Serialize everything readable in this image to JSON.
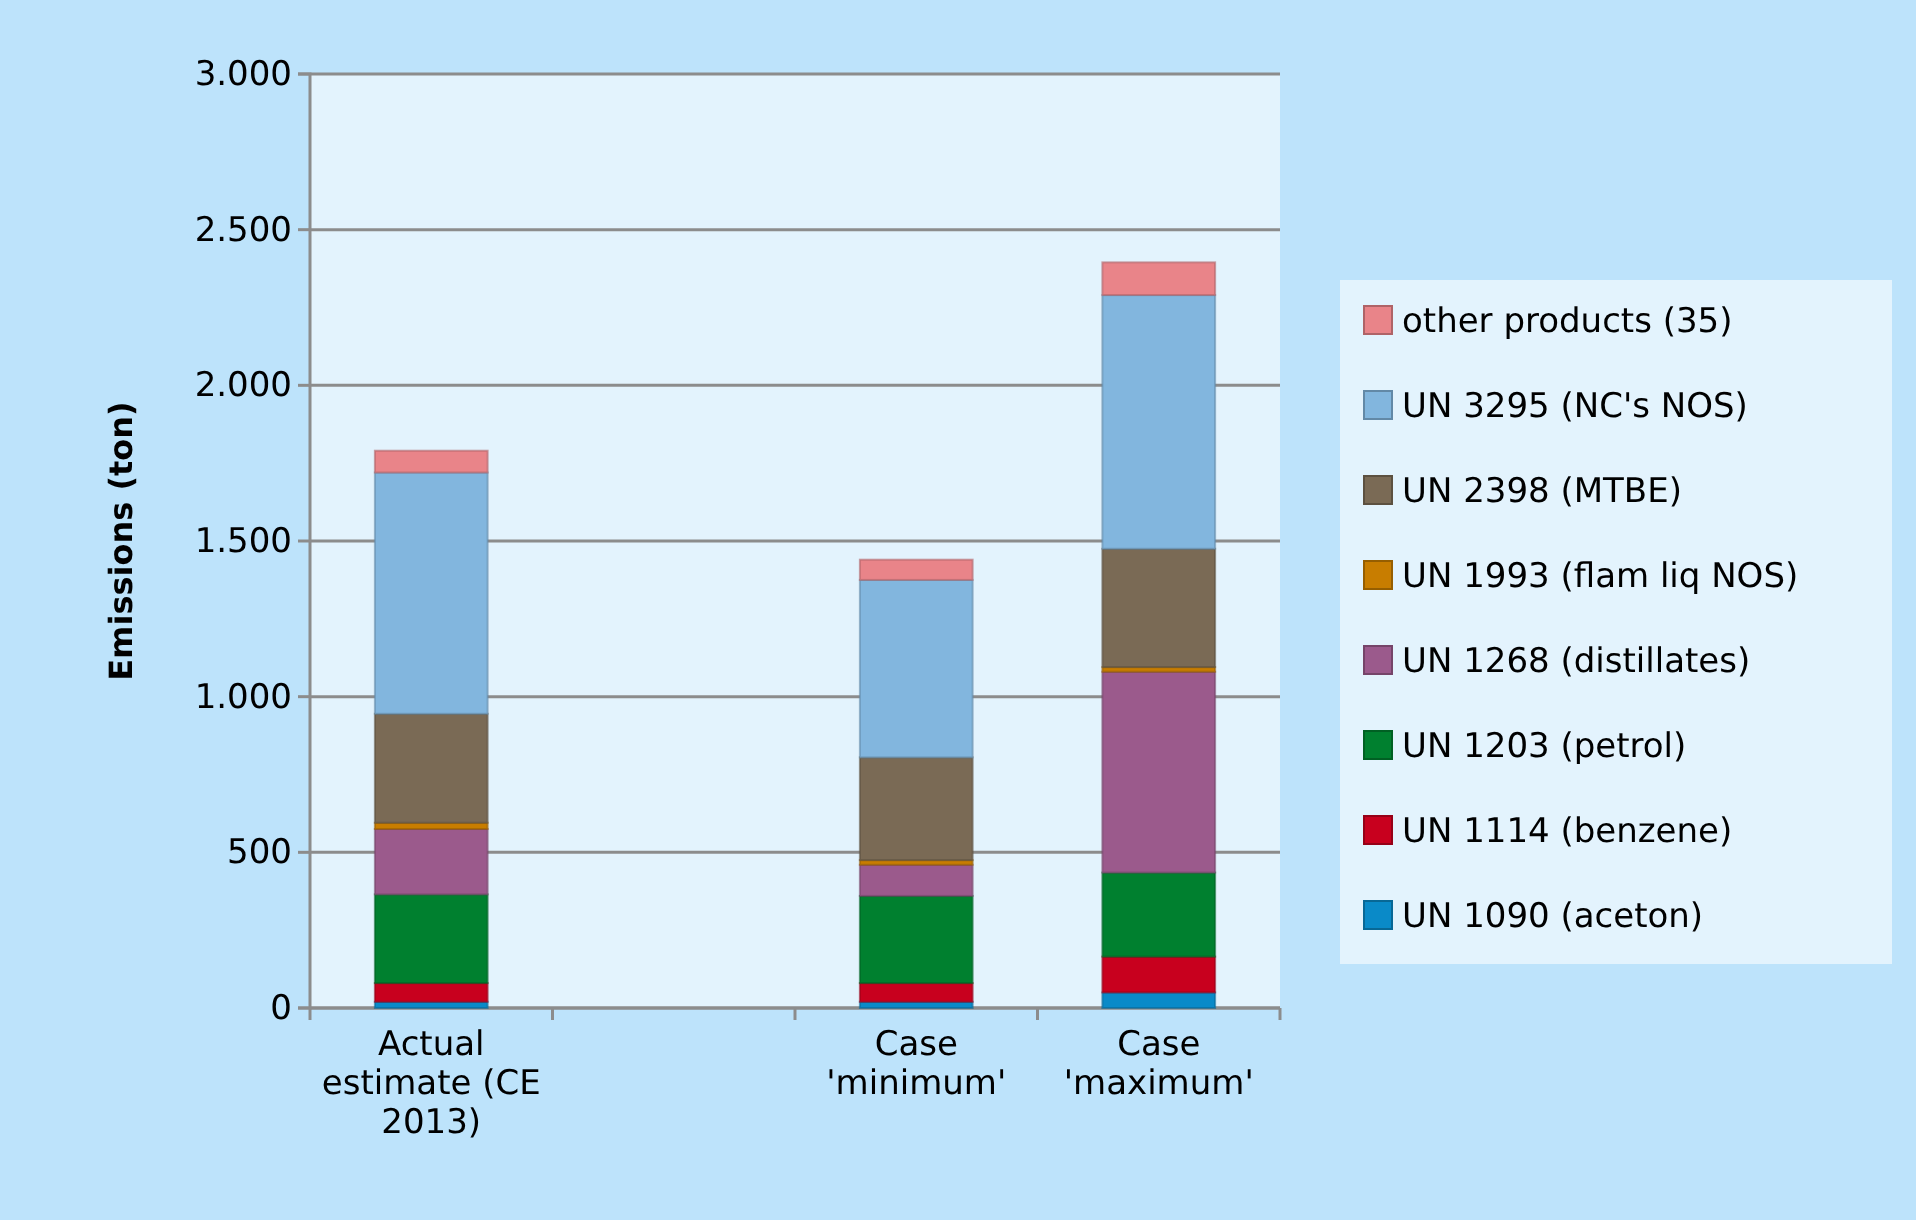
{
  "chart_data": {
    "type": "bar",
    "stacked": true,
    "ylabel": "Emissions (ton)",
    "categories": [
      "Actual estimate (CE 2013)",
      null,
      "Case 'minimum'",
      "Case 'maximum'"
    ],
    "ylim": [
      0,
      3000
    ],
    "yticks": [
      0,
      {
        "value": 500,
        "label": "500"
      },
      {
        "value": 1000,
        "label": "1.000"
      },
      {
        "value": 1500,
        "label": "1.500"
      },
      {
        "value": 2000,
        "label": "2.000"
      },
      {
        "value": 2500,
        "label": "2.500"
      },
      {
        "value": 3000,
        "label": "3.000"
      }
    ],
    "grid": "y",
    "legend": "right",
    "series": [
      {
        "name": "UN 1090 (aceton)",
        "color": "#0a8ac8",
        "values": [
          20,
          null,
          20,
          50
        ]
      },
      {
        "name": "UN 1114 (benzene)",
        "color": "#c8001e",
        "values": [
          60,
          null,
          60,
          115
        ]
      },
      {
        "name": "UN 1203 (petrol)",
        "color": "#00802f",
        "values": [
          285,
          null,
          280,
          270
        ]
      },
      {
        "name": "UN 1268 (distillates)",
        "color": "#9b5a8c",
        "values": [
          210,
          null,
          100,
          645
        ]
      },
      {
        "name": "UN 1993 (flam liq NOS)",
        "color": "#c87d00",
        "values": [
          20,
          null,
          15,
          15
        ]
      },
      {
        "name": "UN 2398 (MTBE)",
        "color": "#7a6a55",
        "values": [
          350,
          null,
          330,
          380
        ]
      },
      {
        "name": "UN 3295 (NC's NOS)",
        "color": "#82b6de",
        "values": [
          775,
          null,
          570,
          815
        ]
      },
      {
        "name": "other products (35)",
        "color": "#e98489",
        "values": [
          70,
          null,
          65,
          105
        ]
      }
    ]
  }
}
